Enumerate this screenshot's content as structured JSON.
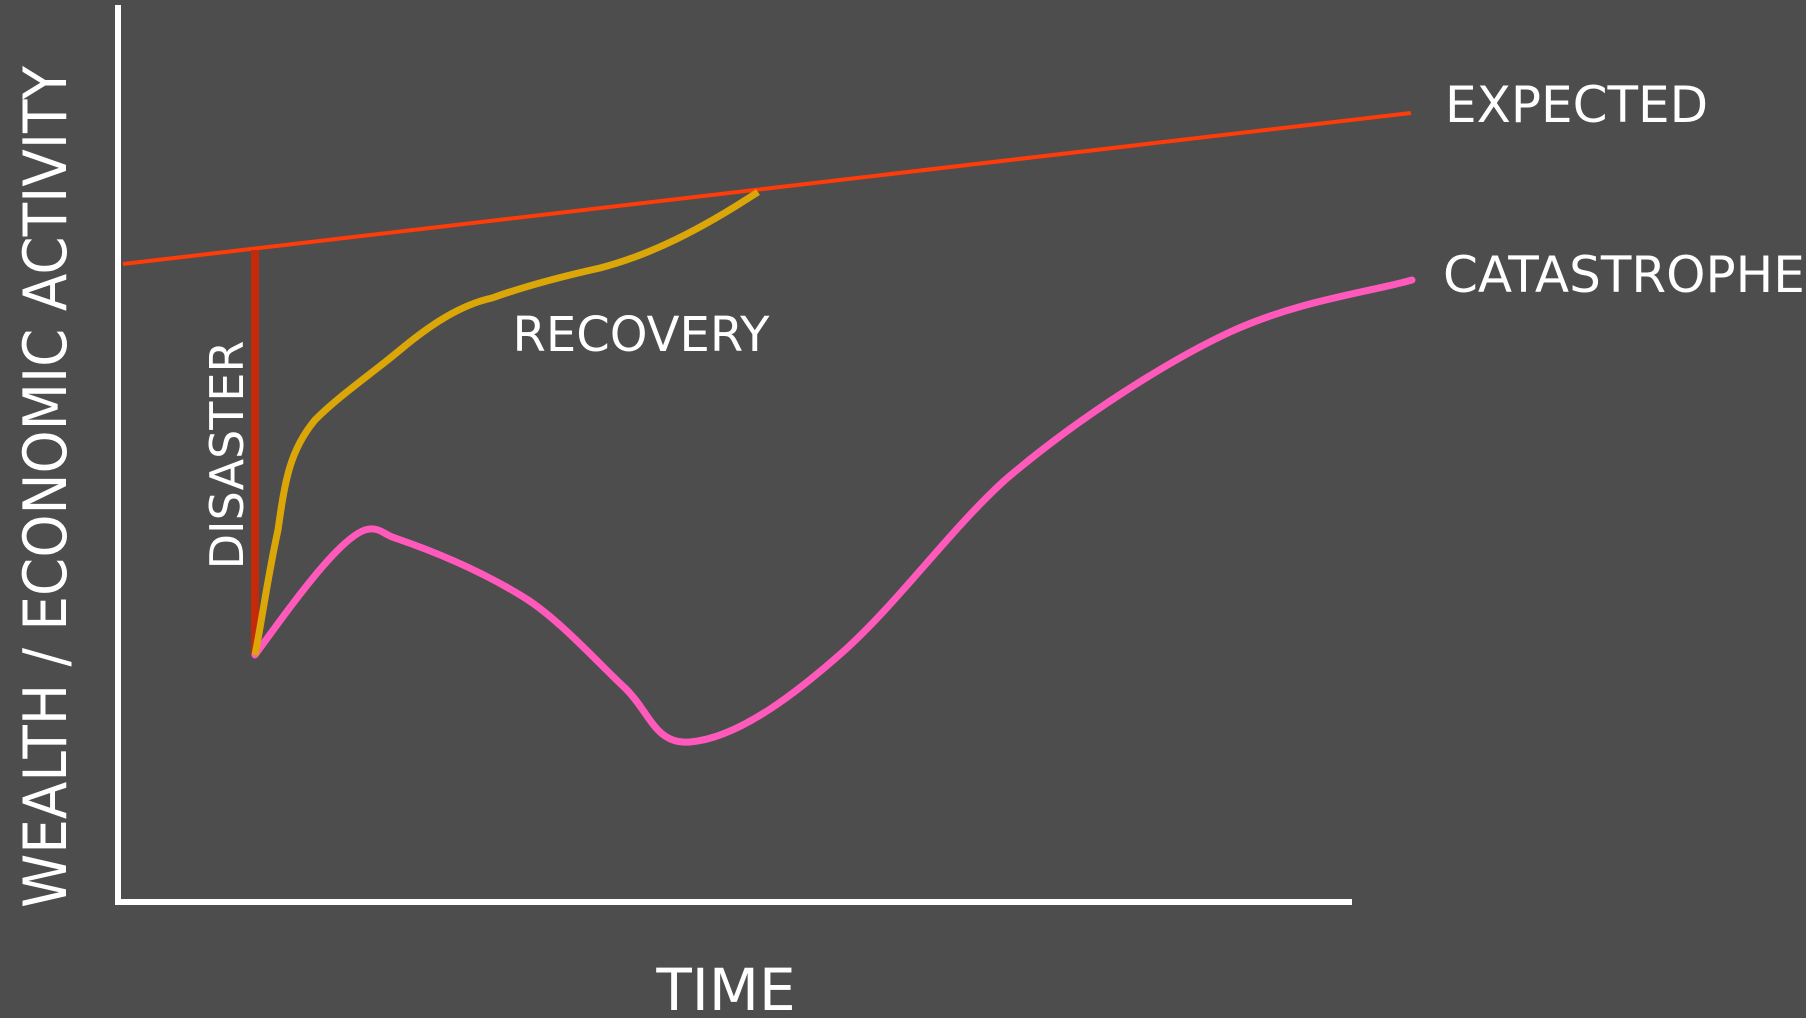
{
  "diagram": {
    "y_axis_label": "WEALTH / ECONOMIC ACTIVITY",
    "x_axis_label": "TIME",
    "disaster_label": "DISASTER",
    "recovery_label": "RECOVERY",
    "expected_label": "EXPECTED",
    "catastrophe_label": "CATASTROPHE"
  },
  "colors": {
    "background": "#4d4d4d",
    "axes": "#ffffff",
    "expected": "#ff3b0a",
    "disaster": "#c42a0a",
    "recovery": "#dba607",
    "catastrophe": "#ff5abb",
    "text": "#ffffff"
  }
}
